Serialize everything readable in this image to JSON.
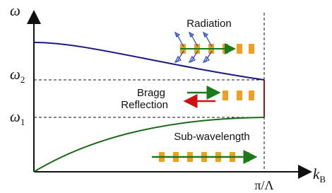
{
  "axes": {
    "y_label": "ω",
    "x_label": "k",
    "x_label_sub": "B",
    "x_tick": "π/Λ"
  },
  "levels": [
    {
      "symbol": "ω",
      "sub": "2"
    },
    {
      "symbol": "ω",
      "sub": "1"
    }
  ],
  "regions": {
    "radiation": "Radiation",
    "bragg": [
      "Bragg",
      "Reflection"
    ],
    "sub_wavelength": "Sub-wavelength"
  }
}
